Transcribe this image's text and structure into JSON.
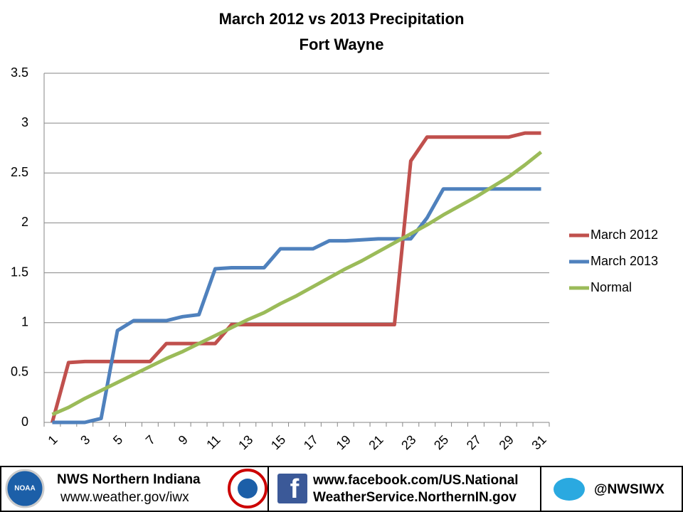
{
  "chart_data": {
    "type": "line",
    "title": "March 2012 vs 2013 Precipitation",
    "subtitle": "Fort Wayne",
    "categories": [
      1,
      null,
      3,
      null,
      5,
      null,
      7,
      null,
      9,
      null,
      11,
      null,
      13,
      null,
      15,
      null,
      17,
      null,
      19,
      null,
      21,
      null,
      23,
      null,
      25,
      null,
      27,
      null,
      29,
      null,
      31
    ],
    "series": [
      {
        "name": "March 2012",
        "color": "#c0504d",
        "values": [
          0,
          0.6,
          0.61,
          0.61,
          0.61,
          0.61,
          0.61,
          0.79,
          0.79,
          0.79,
          0.79,
          0.98,
          0.98,
          0.98,
          0.98,
          0.98,
          0.98,
          0.98,
          0.98,
          0.98,
          0.98,
          0.98,
          2.62,
          2.86,
          2.86,
          2.86,
          2.86,
          2.86,
          2.86,
          2.9,
          2.9
        ]
      },
      {
        "name": "March 2013",
        "color": "#4f81bd",
        "values": [
          0,
          0,
          0,
          0.04,
          0.92,
          1.02,
          1.02,
          1.02,
          1.06,
          1.08,
          1.54,
          1.55,
          1.55,
          1.55,
          1.74,
          1.74,
          1.74,
          1.82,
          1.82,
          1.83,
          1.84,
          1.84,
          1.84,
          2.05,
          2.34,
          2.34,
          2.34,
          2.34,
          2.34,
          2.34,
          2.34
        ]
      },
      {
        "name": "Normal",
        "color": "#9bbb59",
        "values": [
          0.08,
          0.15,
          0.24,
          0.32,
          0.4,
          0.48,
          0.56,
          0.64,
          0.71,
          0.79,
          0.87,
          0.95,
          1.03,
          1.1,
          1.19,
          1.27,
          1.36,
          1.45,
          1.54,
          1.62,
          1.71,
          1.8,
          1.89,
          1.98,
          2.08,
          2.17,
          2.26,
          2.36,
          2.46,
          2.58,
          2.71
        ]
      }
    ],
    "ylim": [
      0,
      3.5
    ],
    "yticks": [
      0,
      0.5,
      1,
      1.5,
      2,
      2.5,
      3,
      3.5
    ],
    "grid": true,
    "legend": "right"
  },
  "footer": {
    "left": {
      "title": "NWS Northern Indiana",
      "url": "www.weather.gov/iwx"
    },
    "middle": {
      "line1": "www.facebook.com/US.National",
      "line2": "WeatherService.NorthernIN.gov"
    },
    "right": {
      "handle": "@NWSIWX"
    }
  }
}
